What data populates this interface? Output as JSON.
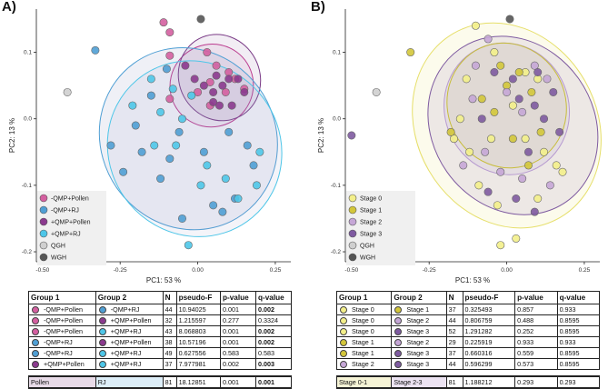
{
  "panels": [
    {
      "label": "A)",
      "xlabel": "PC1:  53 %",
      "ylabel": "PC2:  13 %",
      "legend": [
        {
          "label": "-QMP+Pollen",
          "color": "#d45fa0"
        },
        {
          "label": "-QMP+RJ",
          "color": "#4f9fd4"
        },
        {
          "label": "+QMP+Pollen",
          "color": "#8b3a8e"
        },
        {
          "label": "+QMP+RJ",
          "color": "#4ec6e8"
        },
        {
          "label": "QGH",
          "color": "#cfcfcf"
        },
        {
          "label": "WGH",
          "color": "#555555"
        }
      ]
    },
    {
      "label": "B)",
      "xlabel": "PC1:  53 %",
      "ylabel": "PC2:  13 %",
      "legend": [
        {
          "label": "Stage 0",
          "color": "#f3ef8a"
        },
        {
          "label": "Stage 1",
          "color": "#d3c63a"
        },
        {
          "label": "Stage 2",
          "color": "#c5a6d6"
        },
        {
          "label": "Stage 3",
          "color": "#7e5aa0"
        },
        {
          "label": "QGH",
          "color": "#cfcfcf"
        },
        {
          "label": "WGH",
          "color": "#555555"
        }
      ]
    }
  ],
  "chart_data": [
    {
      "type": "scatter",
      "title": "A)",
      "xlabel": "PC1:  53 %",
      "ylabel": "PC2:  13 %",
      "xlim": [
        -0.52,
        0.3
      ],
      "ylim": [
        -0.215,
        0.165
      ],
      "xticks": [
        -0.5,
        -0.25,
        0.0,
        0.25
      ],
      "yticks": [
        0.1,
        0.0,
        -0.1,
        -0.2
      ],
      "xtick_labels": [
        "-0.50",
        "-0.25",
        "0.00",
        "0.25"
      ],
      "ytick_labels": [
        "0.1",
        "0.0",
        "-0.1",
        "-0.2"
      ],
      "series": [
        {
          "name": "-QMP+Pollen",
          "color": "#d45fa0",
          "points": [
            [
              -0.11,
              0.145
            ],
            [
              -0.09,
              0.13
            ],
            [
              -0.09,
              0.095
            ],
            [
              0.03,
              0.1
            ],
            [
              0.1,
              0.07
            ],
            [
              0.09,
              0.04
            ],
            [
              0.04,
              0.055
            ],
            [
              0.12,
              0.06
            ],
            [
              0.15,
              0.045
            ],
            [
              0.04,
              0.02
            ],
            [
              -0.09,
              0.03
            ],
            [
              0.06,
              0.08
            ],
            [
              0.0,
              0.04
            ]
          ]
        },
        {
          "name": "-QMP+RJ",
          "color": "#4f9fd4",
          "points": [
            [
              -0.33,
              0.103
            ],
            [
              -0.1,
              0.075
            ],
            [
              -0.15,
              0.035
            ],
            [
              -0.2,
              -0.01
            ],
            [
              -0.28,
              -0.04
            ],
            [
              -0.18,
              -0.05
            ],
            [
              -0.12,
              -0.09
            ],
            [
              -0.09,
              -0.06
            ],
            [
              0.02,
              -0.05
            ],
            [
              -0.06,
              -0.02
            ],
            [
              0.1,
              -0.02
            ],
            [
              0.16,
              -0.04
            ],
            [
              0.05,
              -0.13
            ],
            [
              0.08,
              -0.14
            ],
            [
              0.12,
              -0.12
            ],
            [
              -0.05,
              -0.15
            ],
            [
              -0.24,
              -0.08
            ],
            [
              0.18,
              -0.07
            ]
          ]
        },
        {
          "name": "+QMP+Pollen",
          "color": "#8b3a8e",
          "points": [
            [
              -0.04,
              0.08
            ],
            [
              0.06,
              0.065
            ],
            [
              0.1,
              0.06
            ],
            [
              0.13,
              0.06
            ],
            [
              0.08,
              0.05
            ],
            [
              0.05,
              0.04
            ],
            [
              0.07,
              0.02
            ],
            [
              0.11,
              0.02
            ],
            [
              0.15,
              0.04
            ],
            [
              0.02,
              0.05
            ],
            [
              0.05,
              0.025
            ],
            [
              -0.01,
              0.06
            ]
          ]
        },
        {
          "name": "+QMP+RJ",
          "color": "#4ec6e8",
          "points": [
            [
              -0.15,
              0.06
            ],
            [
              -0.08,
              0.045
            ],
            [
              -0.02,
              0.035
            ],
            [
              -0.12,
              0.01
            ],
            [
              -0.05,
              0.0
            ],
            [
              -0.07,
              -0.04
            ],
            [
              -0.14,
              -0.04
            ],
            [
              0.03,
              -0.07
            ],
            [
              0.01,
              -0.1
            ],
            [
              0.09,
              -0.09
            ],
            [
              0.13,
              -0.12
            ],
            [
              0.19,
              -0.1
            ],
            [
              -0.03,
              -0.19
            ],
            [
              0.2,
              -0.05
            ],
            [
              -0.21,
              0.02
            ]
          ]
        },
        {
          "name": "QGH",
          "color": "#cfcfcf",
          "points": [
            [
              -0.42,
              0.04
            ]
          ]
        },
        {
          "name": "WGH",
          "color": "#555555",
          "points": [
            [
              0.01,
              0.15
            ]
          ]
        }
      ]
    },
    {
      "type": "scatter",
      "title": "B)",
      "xlabel": "PC1:  53 %",
      "ylabel": "PC2:  13 %",
      "xlim": [
        -0.52,
        0.3
      ],
      "ylim": [
        -0.215,
        0.165
      ],
      "xticks": [
        -0.5,
        -0.25,
        0.0,
        0.25
      ],
      "yticks": [
        0.1,
        0.0,
        -0.1,
        -0.2
      ],
      "xtick_labels": [
        "-0.50",
        "-0.25",
        "0.00",
        "0.25"
      ],
      "ytick_labels": [
        "0.1",
        "0.0",
        "-0.1",
        "-0.2"
      ],
      "series": [
        {
          "name": "Stage 0",
          "color": "#f3ef8a",
          "points": [
            [
              -0.1,
              0.14
            ],
            [
              -0.04,
              0.1
            ],
            [
              0.06,
              0.07
            ],
            [
              0.1,
              0.06
            ],
            [
              -0.13,
              0.06
            ],
            [
              -0.15,
              0.0
            ],
            [
              -0.17,
              -0.03
            ],
            [
              -0.12,
              -0.05
            ],
            [
              -0.05,
              -0.03
            ],
            [
              0.06,
              -0.03
            ],
            [
              0.12,
              -0.05
            ],
            [
              0.18,
              -0.08
            ],
            [
              -0.09,
              -0.1
            ],
            [
              -0.03,
              -0.13
            ],
            [
              0.03,
              -0.18
            ],
            [
              -0.02,
              -0.19
            ],
            [
              0.1,
              -0.12
            ],
            [
              0.16,
              -0.07
            ],
            [
              0.02,
              0.02
            ]
          ]
        },
        {
          "name": "Stage 1",
          "color": "#d3c63a",
          "points": [
            [
              -0.31,
              0.1
            ],
            [
              -0.02,
              0.08
            ],
            [
              0.04,
              0.07
            ],
            [
              0.08,
              0.04
            ],
            [
              -0.08,
              0.03
            ],
            [
              -0.04,
              0.01
            ],
            [
              0.02,
              -0.03
            ],
            [
              0.07,
              -0.07
            ],
            [
              0.11,
              -0.02
            ],
            [
              -0.18,
              -0.02
            ],
            [
              0.0,
              0.05
            ]
          ]
        },
        {
          "name": "Stage 2",
          "color": "#c5a6d6",
          "points": [
            [
              -0.06,
              0.12
            ],
            [
              -0.1,
              0.08
            ],
            [
              0.13,
              0.06
            ],
            [
              -0.11,
              0.03
            ],
            [
              0.05,
              0.01
            ],
            [
              -0.07,
              -0.05
            ],
            [
              -0.02,
              -0.08
            ],
            [
              0.05,
              -0.09
            ],
            [
              0.14,
              -0.1
            ],
            [
              -0.14,
              -0.07
            ],
            [
              0.0,
              0.04
            ],
            [
              0.09,
              0.08
            ]
          ]
        },
        {
          "name": "Stage 3",
          "color": "#7e5aa0",
          "points": [
            [
              -0.5,
              -0.025
            ],
            [
              -0.04,
              0.07
            ],
            [
              0.02,
              0.06
            ],
            [
              0.1,
              0.07
            ],
            [
              0.15,
              0.04
            ],
            [
              0.09,
              0.02
            ],
            [
              0.04,
              0.03
            ],
            [
              0.12,
              0.0
            ],
            [
              0.07,
              -0.05
            ],
            [
              -0.08,
              0.0
            ],
            [
              0.03,
              -0.12
            ],
            [
              0.09,
              -0.14
            ],
            [
              0.17,
              -0.02
            ],
            [
              -0.06,
              -0.11
            ]
          ]
        },
        {
          "name": "QGH",
          "color": "#cfcfcf",
          "points": [
            [
              -0.42,
              0.04
            ]
          ]
        },
        {
          "name": "WGH",
          "color": "#555555",
          "points": [
            [
              0.01,
              0.15
            ]
          ]
        }
      ]
    }
  ],
  "table_a": {
    "headers": [
      "Group 1",
      "Group 2",
      "N",
      "pseudo-F",
      "p-value",
      "q-value"
    ],
    "rows": [
      {
        "g1": "-QMP+Pollen",
        "g1c": "#d45fa0",
        "g2": "-QMP+RJ",
        "g2c": "#4f9fd4",
        "n": "44",
        "f": "10.94025",
        "p": "0.001",
        "q": "0.002",
        "qb": true
      },
      {
        "g1": "-QMP+Pollen",
        "g1c": "#d45fa0",
        "g2": "+QMP+Pollen",
        "g2c": "#8b3a8e",
        "n": "32",
        "f": "1.215597",
        "p": "0.277",
        "q": "0.3324",
        "qb": false
      },
      {
        "g1": "-QMP+Pollen",
        "g1c": "#d45fa0",
        "g2": "+QMP+RJ",
        "g2c": "#4ec6e8",
        "n": "43",
        "f": "8.068803",
        "p": "0.001",
        "q": "0.002",
        "qb": true
      },
      {
        "g1": "-QMP+RJ",
        "g1c": "#4f9fd4",
        "g2": "+QMP+Pollen",
        "g2c": "#8b3a8e",
        "n": "38",
        "f": "10.57196",
        "p": "0.001",
        "q": "0.002",
        "qb": true
      },
      {
        "g1": "-QMP+RJ",
        "g1c": "#4f9fd4",
        "g2": "+QMP+RJ",
        "g2c": "#4ec6e8",
        "n": "49",
        "f": "0.627556",
        "p": "0.583",
        "q": "0.583",
        "qb": false
      },
      {
        "g1": "+QMP+Pollen",
        "g1c": "#8b3a8e",
        "g2": "+QMP+RJ",
        "g2c": "#4ec6e8",
        "n": "37",
        "f": "7.977981",
        "p": "0.002",
        "q": "0.003",
        "qb": true
      }
    ],
    "total": {
      "g1": "Pollen",
      "g2": "RJ",
      "n": "81",
      "f": "18.12851",
      "p": "0.001",
      "q": "0.001",
      "qb": true,
      "g1bg": "#e8dbe8",
      "g2bg": "#ddeef8"
    }
  },
  "table_b": {
    "headers": [
      "Group 1",
      "Group 2",
      "N",
      "pseudo-F",
      "p-value",
      "q-value"
    ],
    "rows": [
      {
        "g1": "Stage 0",
        "g1c": "#f3ef8a",
        "g2": "Stage 1",
        "g2c": "#d3c63a",
        "n": "37",
        "f": "0.325493",
        "p": "0.857",
        "q": "0.933",
        "qb": false
      },
      {
        "g1": "Stage 0",
        "g1c": "#f3ef8a",
        "g2": "Stage 2",
        "g2c": "#c5a6d6",
        "n": "44",
        "f": "0.806759",
        "p": "0.488",
        "q": "0.8595",
        "qb": false
      },
      {
        "g1": "Stage 0",
        "g1c": "#f3ef8a",
        "g2": "Stage 3",
        "g2c": "#7e5aa0",
        "n": "52",
        "f": "1.291282",
        "p": "0.252",
        "q": "0.8595",
        "qb": false
      },
      {
        "g1": "Stage 1",
        "g1c": "#d3c63a",
        "g2": "Stage 2",
        "g2c": "#c5a6d6",
        "n": "29",
        "f": "0.225919",
        "p": "0.933",
        "q": "0.933",
        "qb": false
      },
      {
        "g1": "Stage 1",
        "g1c": "#d3c63a",
        "g2": "Stage 3",
        "g2c": "#7e5aa0",
        "n": "37",
        "f": "0.660316",
        "p": "0.559",
        "q": "0.8595",
        "qb": false
      },
      {
        "g1": "Stage 2",
        "g1c": "#c5a6d6",
        "g2": "Stage 3",
        "g2c": "#7e5aa0",
        "n": "44",
        "f": "0.596299",
        "p": "0.573",
        "q": "0.8595",
        "qb": false
      }
    ],
    "total": {
      "g1": "Stage 0-1",
      "g2": "Stage 2-3",
      "n": "81",
      "f": "1.188212",
      "p": "0.293",
      "q": "0.293",
      "qb": false,
      "g1bg": "#f6f4d6",
      "g2bg": "#ece3f2"
    }
  }
}
